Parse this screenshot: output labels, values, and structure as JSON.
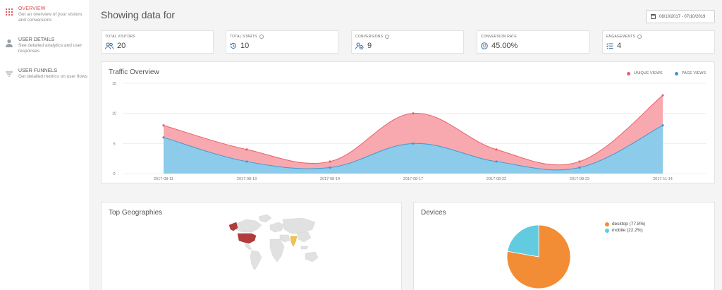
{
  "sidebar": {
    "items": [
      {
        "title": "OVERVIEW",
        "desc": "Get an overview of your visitors and conversions",
        "icon": "grid-dots-icon"
      },
      {
        "title": "USER DETAILS",
        "desc": "See detailed analytics and user responses",
        "icon": "user-icon"
      },
      {
        "title": "USER FUNNELS",
        "desc": "Get detailed metrics on user flows",
        "icon": "funnel-icon"
      }
    ]
  },
  "header": {
    "title": "Showing data for",
    "date_range": "08/10/2017 - 07/10/2019"
  },
  "stats": [
    {
      "label": "TOTAL VISITORS",
      "value": "20",
      "icon": "users-icon",
      "info": false
    },
    {
      "label": "TOTAL STARTS",
      "value": "10",
      "icon": "history-icon",
      "info": true
    },
    {
      "label": "CONVERSIONS",
      "value": "9",
      "icon": "user-check-icon",
      "info": true
    },
    {
      "label": "CONVERSION RATE",
      "value": "45.00%",
      "icon": "smile-icon",
      "info": false
    },
    {
      "label": "ENGAGEMENTS",
      "value": "4",
      "icon": "list-check-icon",
      "info": true
    }
  ],
  "traffic": {
    "title": "Traffic Overview",
    "legend": [
      {
        "label": "UNIQUE VIEWS",
        "color": "#e8616b"
      },
      {
        "label": "PAGE VIEWS",
        "color": "#3b9ad6"
      }
    ]
  },
  "geo": {
    "title": "Top Geographies"
  },
  "devices": {
    "title": "Devices"
  },
  "chart_data": [
    {
      "type": "area",
      "title": "Traffic Overview",
      "x": [
        "2017-08-11",
        "2017-08-13",
        "2017-08-14",
        "2017-08-17",
        "2017-08-22",
        "2017-08-23",
        "2017-11-14"
      ],
      "series": [
        {
          "name": "UNIQUE VIEWS",
          "values": [
            8,
            4,
            2,
            10,
            4,
            2,
            13
          ],
          "color": "#e8616b",
          "fill": "#f7a9af"
        },
        {
          "name": "PAGE VIEWS",
          "values": [
            6,
            2,
            1,
            5,
            2,
            1,
            8
          ],
          "color": "#3b9ad6",
          "fill": "#8ccbea"
        }
      ],
      "yticks": [
        0,
        5,
        10,
        15
      ],
      "ylim": [
        0,
        15
      ],
      "grid": true,
      "legend": "top-right"
    },
    {
      "type": "pie",
      "title": "Devices",
      "slices": [
        {
          "label": "desktop (77.8%)",
          "value": 77.8,
          "color": "#f28c35"
        },
        {
          "label": "mobile (22.2%)",
          "value": 22.2,
          "color": "#62cbe0"
        }
      ],
      "legend": "top-right"
    }
  ]
}
